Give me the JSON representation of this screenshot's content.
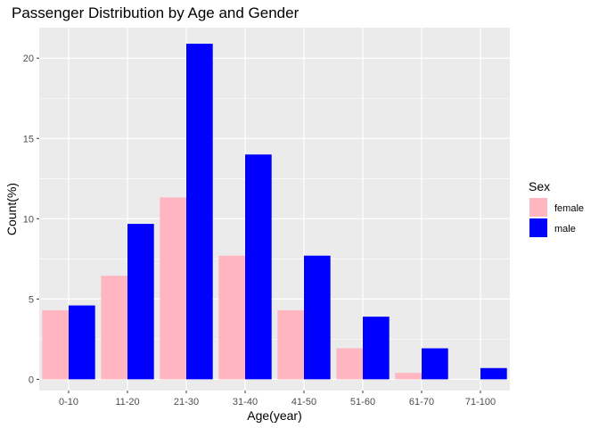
{
  "chart_data": {
    "type": "bar",
    "title": "Passenger Distribution by Age and Gender",
    "xlabel": "Age(year)",
    "ylabel": "Count(%)",
    "categories": [
      "0-10",
      "11-20",
      "21-30",
      "31-40",
      "41-50",
      "51-60",
      "61-70",
      "71-100"
    ],
    "series": [
      {
        "name": "female",
        "color": "#FFB6C1",
        "values": [
          4.3,
          6.45,
          11.33,
          7.7,
          4.3,
          1.93,
          0.4,
          0
        ]
      },
      {
        "name": "male",
        "color": "#0000FF",
        "values": [
          4.6,
          9.68,
          20.9,
          14.0,
          7.7,
          3.9,
          1.93,
          0.7
        ]
      }
    ],
    "ylim": [
      -0.7,
      21.9
    ],
    "yticks": [
      0,
      5,
      10,
      15,
      20
    ],
    "grid": true,
    "legend": {
      "title": "Sex",
      "placement": "right"
    },
    "panel_background": "#EBEBEB",
    "gridline_color": "#FFFFFF"
  }
}
